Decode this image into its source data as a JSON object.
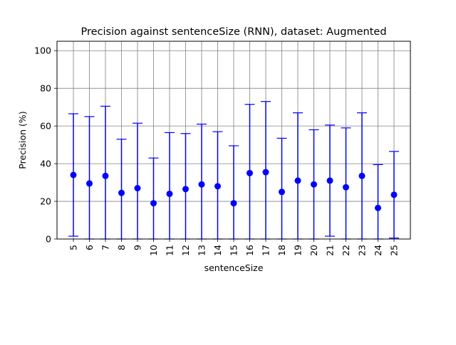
{
  "chart_data": {
    "type": "scatter",
    "title": "Precision against sentenceSize (RNN), dataset: Augmented",
    "xlabel": "sentenceSize",
    "ylabel": "Precision (%)",
    "ylim": [
      0,
      105
    ],
    "yticks": [
      0,
      20,
      40,
      60,
      80,
      100
    ],
    "grid": true,
    "marker_color": "#0000ff",
    "grid_color": "#808080",
    "categories": [
      "5",
      "6",
      "7",
      "8",
      "9",
      "10",
      "11",
      "12",
      "13",
      "14",
      "15",
      "16",
      "17",
      "18",
      "19",
      "20",
      "21",
      "22",
      "23",
      "24",
      "25"
    ],
    "series": [
      {
        "values": [
          34,
          29.5,
          33.5,
          24.5,
          27,
          19,
          24,
          26.5,
          29,
          28,
          19,
          35,
          35.5,
          25,
          31,
          29,
          31,
          27.5,
          33.5,
          16.5,
          23.5
        ],
        "err_low": [
          1.5,
          0,
          0,
          0,
          0,
          0,
          0,
          0,
          0,
          0,
          0,
          0,
          0,
          0,
          0,
          0,
          1.5,
          0,
          0,
          0,
          0.5
        ],
        "err_high": [
          66.5,
          65,
          70.5,
          53,
          61.5,
          43,
          56.5,
          56,
          61,
          57,
          49.5,
          71.5,
          73,
          53.5,
          67,
          58,
          60.5,
          59,
          67,
          39.5,
          46.5
        ]
      }
    ]
  }
}
